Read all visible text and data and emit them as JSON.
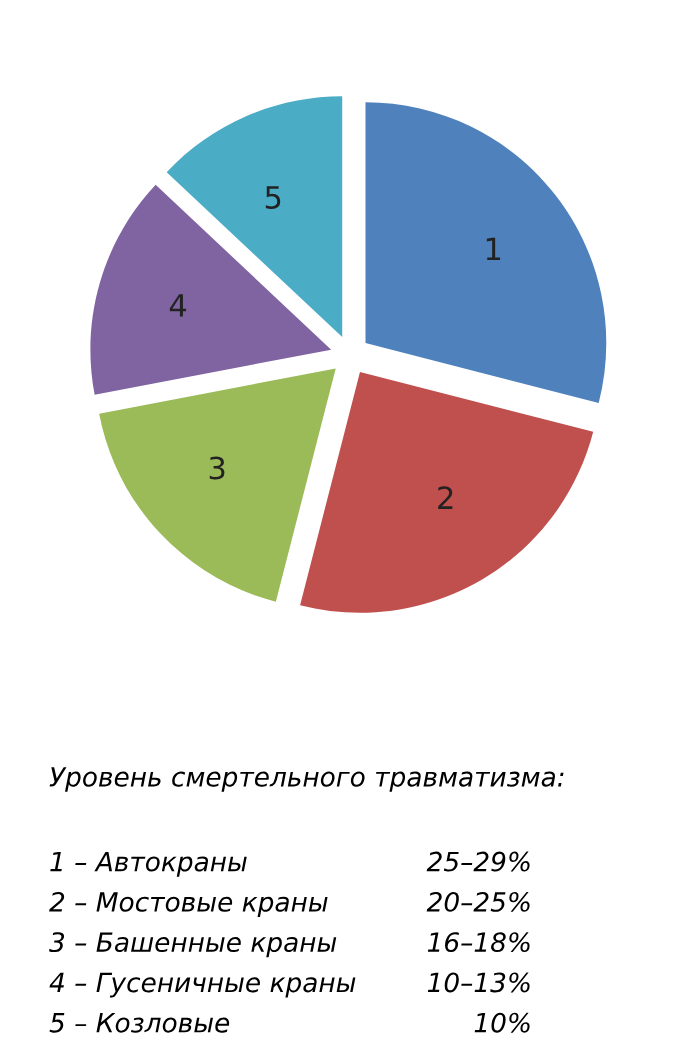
{
  "chart_data": {
    "type": "pie",
    "categories": [
      "1",
      "2",
      "3",
      "4",
      "5"
    ],
    "values": [
      29,
      25,
      18,
      15,
      13
    ],
    "colors": [
      "#4f81bd",
      "#c0504d",
      "#9bbb59",
      "#8064a2",
      "#4bacc6"
    ],
    "annotations": [
      "Уровень смертельного травматизма:",
      "1 – Автокраны",
      "25–29%",
      "2 – Мостовые краны",
      "20–25%",
      "3 – Башенные краны",
      "16–18%",
      "4 – Гусеничные краны",
      "10–13%",
      "5 – Козловые",
      "10%"
    ]
  }
}
